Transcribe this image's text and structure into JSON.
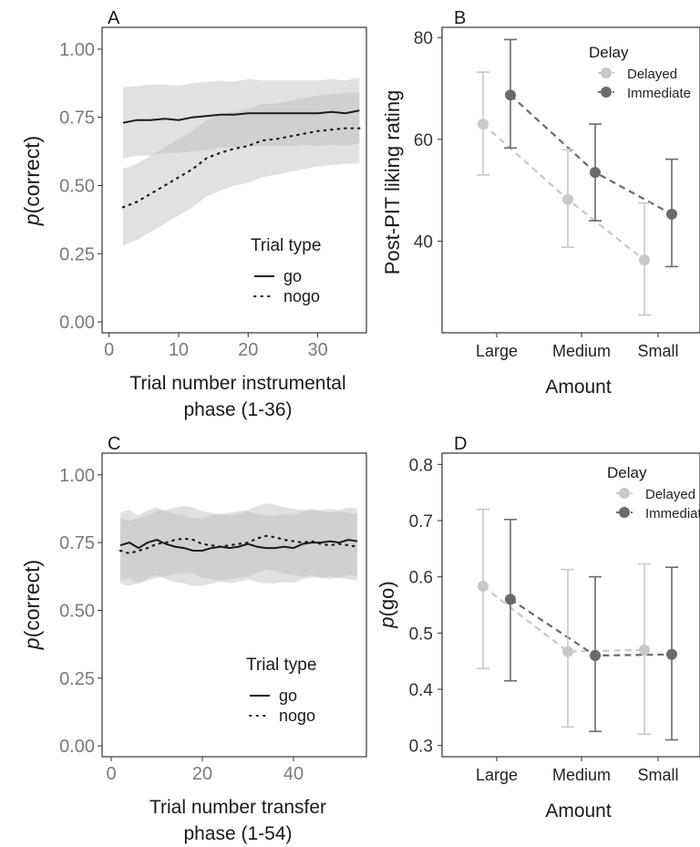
{
  "chart_data": [
    {
      "panel": "A",
      "type": "line",
      "xlabel": [
        "Trial number instrumental",
        "phase (1-36)"
      ],
      "ylabel_italic": "p",
      "ylabel_rest": "(correct)",
      "xlim": [
        -1,
        37
      ],
      "ylim": [
        -0.04,
        1.08
      ],
      "xticks": [
        0,
        10,
        20,
        30
      ],
      "yticks": [
        "0.00",
        "0.25",
        "0.50",
        "0.75",
        "1.00"
      ],
      "legend": {
        "title": "Trial type",
        "position": "bottom-right"
      },
      "series": [
        {
          "name": "go",
          "style": "solid",
          "x": [
            2,
            4,
            6,
            8,
            10,
            12,
            14,
            16,
            18,
            20,
            22,
            24,
            26,
            28,
            30,
            32,
            34,
            36
          ],
          "y": [
            0.73,
            0.74,
            0.74,
            0.745,
            0.74,
            0.75,
            0.755,
            0.76,
            0.76,
            0.765,
            0.765,
            0.765,
            0.765,
            0.765,
            0.765,
            0.77,
            0.765,
            0.775
          ],
          "band_lower": [
            0.6,
            0.61,
            0.61,
            0.62,
            0.62,
            0.625,
            0.63,
            0.64,
            0.64,
            0.645,
            0.645,
            0.645,
            0.645,
            0.65,
            0.645,
            0.65,
            0.645,
            0.655
          ],
          "band_upper": [
            0.86,
            0.865,
            0.87,
            0.87,
            0.865,
            0.875,
            0.88,
            0.885,
            0.88,
            0.89,
            0.885,
            0.885,
            0.885,
            0.885,
            0.885,
            0.89,
            0.885,
            0.895
          ]
        },
        {
          "name": "nogo",
          "style": "dotted",
          "x": [
            2,
            4,
            6,
            8,
            10,
            12,
            14,
            16,
            18,
            20,
            22,
            24,
            26,
            28,
            30,
            32,
            34,
            36
          ],
          "y": [
            0.42,
            0.44,
            0.47,
            0.5,
            0.53,
            0.56,
            0.6,
            0.62,
            0.635,
            0.645,
            0.665,
            0.67,
            0.68,
            0.69,
            0.7,
            0.705,
            0.71,
            0.71
          ],
          "band_lower": [
            0.28,
            0.3,
            0.33,
            0.36,
            0.39,
            0.42,
            0.46,
            0.48,
            0.5,
            0.51,
            0.53,
            0.54,
            0.55,
            0.56,
            0.57,
            0.575,
            0.58,
            0.58
          ],
          "band_upper": [
            0.56,
            0.58,
            0.61,
            0.64,
            0.67,
            0.7,
            0.74,
            0.76,
            0.77,
            0.78,
            0.8,
            0.8,
            0.81,
            0.82,
            0.83,
            0.835,
            0.84,
            0.84
          ]
        }
      ]
    },
    {
      "panel": "B",
      "type": "scatter",
      "categories": [
        "Large",
        "Medium",
        "Small"
      ],
      "xlabel": "Amount",
      "ylabel": "Post-PIT liking rating",
      "ylim": [
        22,
        82
      ],
      "yticks": [
        40,
        60,
        80
      ],
      "legend": {
        "title": "Delay",
        "position": "top-right"
      },
      "series": [
        {
          "name": "Delayed",
          "color": "#c8c8c8",
          "values": [
            63,
            48.2,
            36.3
          ],
          "err_low": [
            53,
            38.8,
            25.5
          ],
          "err_high": [
            73.2,
            58,
            47.5
          ]
        },
        {
          "name": "Immediate",
          "color": "#6b6b6b",
          "values": [
            68.7,
            53.5,
            45.3
          ],
          "err_low": [
            58.3,
            44,
            35
          ],
          "err_high": [
            79.6,
            63,
            56.1
          ]
        }
      ]
    },
    {
      "panel": "C",
      "type": "line",
      "xlabel": [
        "Trial number transfer",
        "phase (1-54)"
      ],
      "ylabel_italic": "p",
      "ylabel_rest": "(correct)",
      "xlim": [
        -2,
        56
      ],
      "ylim": [
        -0.04,
        1.08
      ],
      "xticks": [
        0,
        20,
        40
      ],
      "yticks": [
        "0.00",
        "0.25",
        "0.50",
        "0.75",
        "1.00"
      ],
      "legend": {
        "title": "Trial type",
        "position": "bottom-right"
      },
      "series": [
        {
          "name": "go",
          "style": "solid",
          "x": [
            2,
            4,
            6,
            8,
            10,
            12,
            14,
            16,
            18,
            20,
            22,
            24,
            26,
            28,
            30,
            32,
            34,
            36,
            38,
            40,
            42,
            44,
            46,
            48,
            50,
            52,
            54
          ],
          "y": [
            0.74,
            0.75,
            0.73,
            0.75,
            0.76,
            0.745,
            0.735,
            0.73,
            0.72,
            0.72,
            0.73,
            0.735,
            0.73,
            0.735,
            0.745,
            0.735,
            0.73,
            0.73,
            0.735,
            0.73,
            0.745,
            0.75,
            0.75,
            0.755,
            0.75,
            0.76,
            0.755
          ],
          "band_lower": [
            0.61,
            0.62,
            0.6,
            0.62,
            0.63,
            0.615,
            0.605,
            0.6,
            0.59,
            0.59,
            0.6,
            0.605,
            0.6,
            0.605,
            0.615,
            0.605,
            0.6,
            0.6,
            0.605,
            0.6,
            0.615,
            0.62,
            0.62,
            0.625,
            0.62,
            0.63,
            0.625
          ],
          "band_upper": [
            0.86,
            0.87,
            0.85,
            0.87,
            0.88,
            0.865,
            0.855,
            0.85,
            0.84,
            0.84,
            0.85,
            0.855,
            0.85,
            0.855,
            0.865,
            0.855,
            0.85,
            0.85,
            0.855,
            0.85,
            0.865,
            0.87,
            0.87,
            0.875,
            0.87,
            0.88,
            0.875
          ]
        },
        {
          "name": "nogo",
          "style": "dotted",
          "x": [
            2,
            4,
            6,
            8,
            10,
            12,
            14,
            16,
            18,
            20,
            22,
            24,
            26,
            28,
            30,
            32,
            34,
            36,
            38,
            40,
            42,
            44,
            46,
            48,
            50,
            52,
            54
          ],
          "y": [
            0.72,
            0.71,
            0.72,
            0.73,
            0.745,
            0.75,
            0.76,
            0.765,
            0.76,
            0.745,
            0.74,
            0.735,
            0.74,
            0.745,
            0.75,
            0.765,
            0.775,
            0.77,
            0.76,
            0.755,
            0.75,
            0.755,
            0.745,
            0.74,
            0.745,
            0.74,
            0.735
          ],
          "band_lower": [
            0.6,
            0.59,
            0.6,
            0.61,
            0.62,
            0.625,
            0.635,
            0.64,
            0.635,
            0.62,
            0.615,
            0.61,
            0.615,
            0.62,
            0.625,
            0.64,
            0.65,
            0.645,
            0.635,
            0.63,
            0.625,
            0.63,
            0.62,
            0.615,
            0.62,
            0.615,
            0.61
          ],
          "band_upper": [
            0.84,
            0.83,
            0.84,
            0.85,
            0.865,
            0.87,
            0.88,
            0.885,
            0.88,
            0.865,
            0.86,
            0.855,
            0.86,
            0.865,
            0.87,
            0.885,
            0.895,
            0.89,
            0.88,
            0.875,
            0.87,
            0.875,
            0.865,
            0.86,
            0.865,
            0.86,
            0.855
          ]
        }
      ]
    },
    {
      "panel": "D",
      "type": "scatter",
      "categories": [
        "Large",
        "Medium",
        "Small"
      ],
      "xlabel": "Amount",
      "ylabel_italic": "p",
      "ylabel_rest": "(go)",
      "ylim": [
        0.28,
        0.82
      ],
      "yticks": [
        "0.3",
        "0.4",
        "0.5",
        "0.6",
        "0.7",
        "0.8"
      ],
      "legend": {
        "title": "Delay",
        "position": "top-right"
      },
      "series": [
        {
          "name": "Delayed",
          "color": "#c8c8c8",
          "values": [
            0.583,
            0.467,
            0.47
          ],
          "err_low": [
            0.437,
            0.333,
            0.32
          ],
          "err_high": [
            0.72,
            0.613,
            0.623
          ]
        },
        {
          "name": "Immediate",
          "color": "#6b6b6b",
          "values": [
            0.56,
            0.46,
            0.462
          ],
          "err_low": [
            0.415,
            0.325,
            0.31
          ],
          "err_high": [
            0.702,
            0.6,
            0.617
          ]
        }
      ]
    }
  ]
}
